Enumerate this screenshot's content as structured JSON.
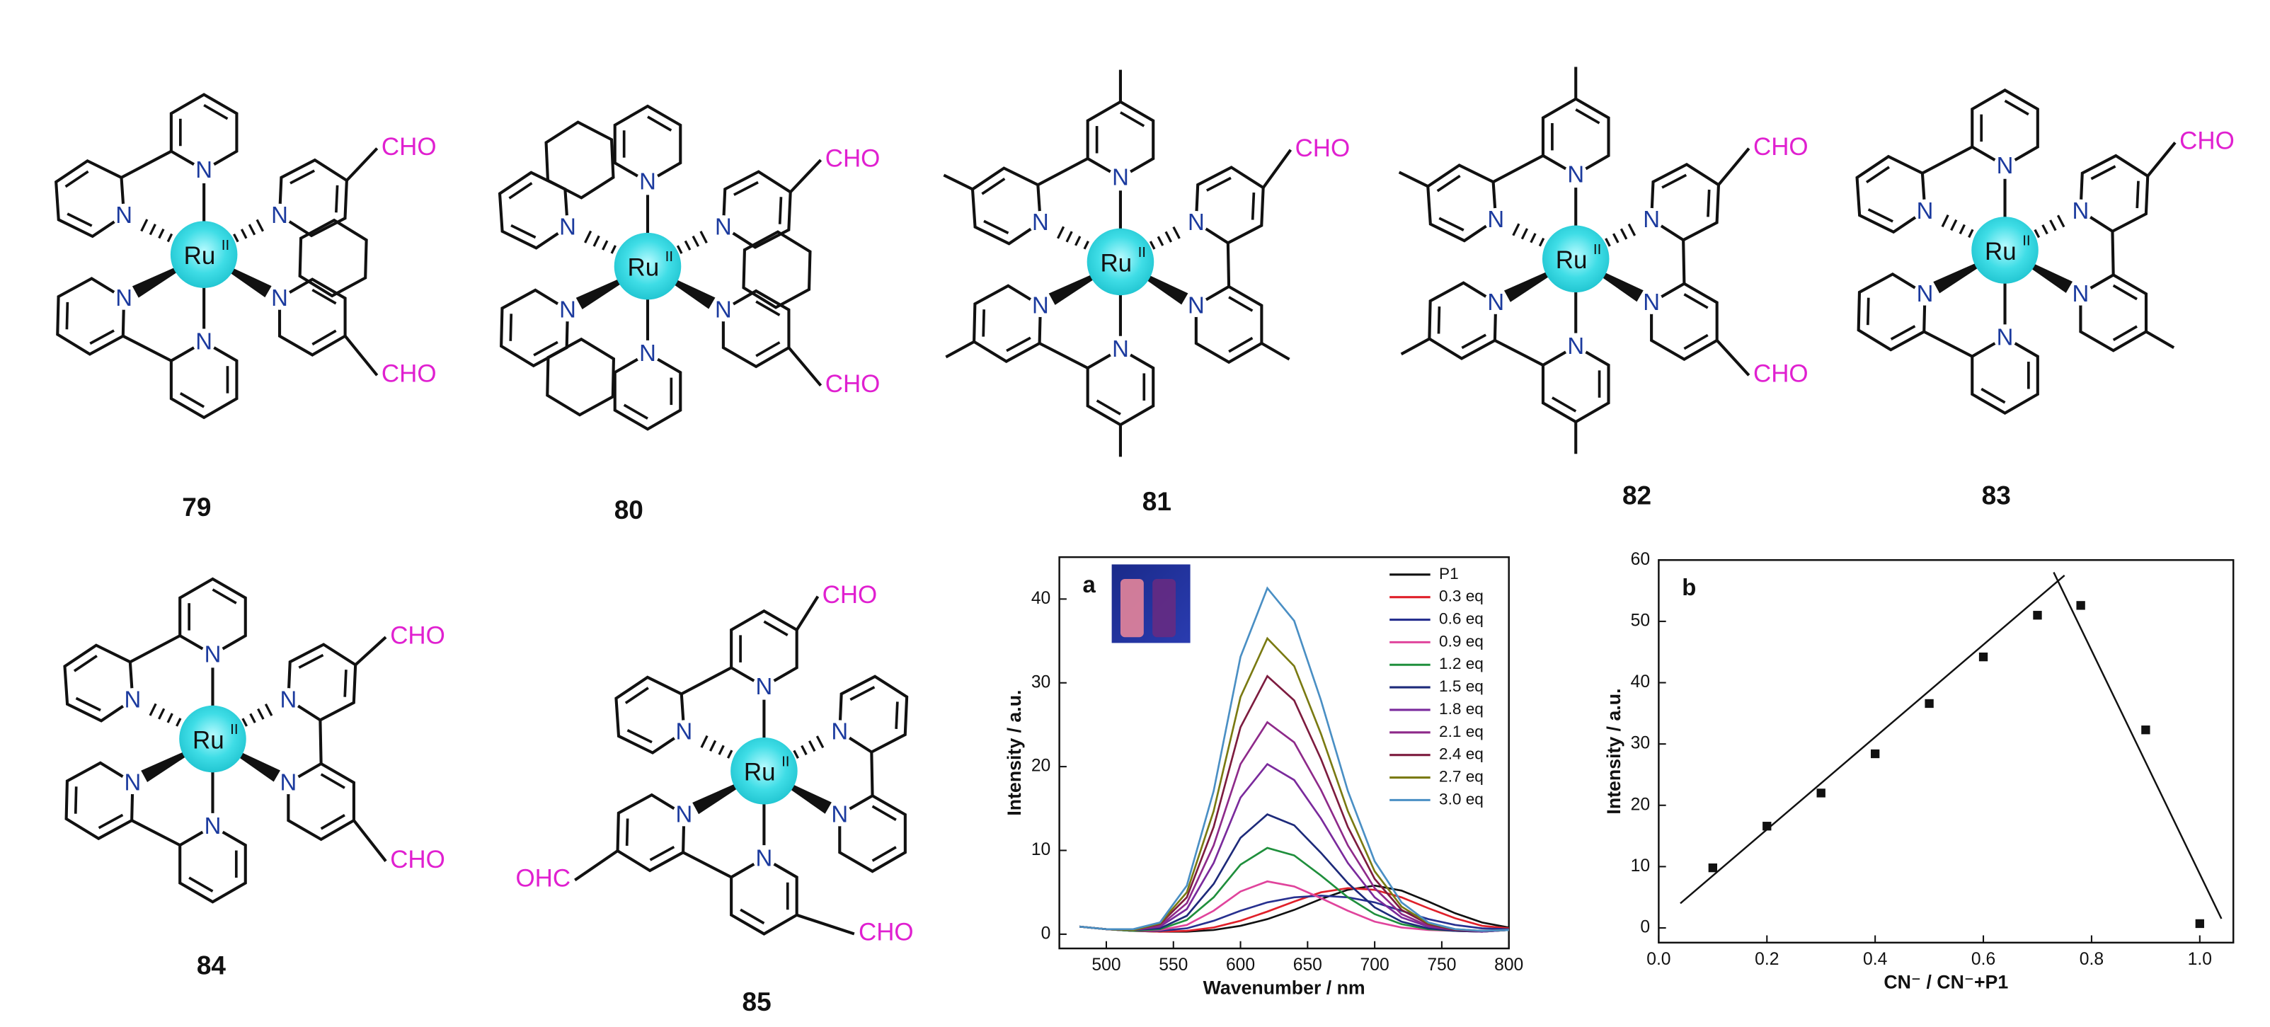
{
  "compounds": [
    {
      "label": "79",
      "metal": "Ru",
      "oxidation_state": "II",
      "donor": "N",
      "substituents": [
        "CHO",
        "CHO"
      ]
    },
    {
      "label": "80",
      "metal": "Ru",
      "oxidation_state": "II",
      "donor": "N",
      "substituents": [
        "CHO",
        "CHO"
      ]
    },
    {
      "label": "81",
      "metal": "Ru",
      "oxidation_state": "II",
      "donor": "N",
      "substituents": [
        "CHO"
      ]
    },
    {
      "label": "82",
      "metal": "Ru",
      "oxidation_state": "II",
      "donor": "N",
      "substituents": [
        "CHO",
        "CHO"
      ]
    },
    {
      "label": "83",
      "metal": "Ru",
      "oxidation_state": "II",
      "donor": "N",
      "substituents": [
        "CHO"
      ]
    },
    {
      "label": "84",
      "metal": "Ru",
      "oxidation_state": "II",
      "donor": "N",
      "substituents": [
        "CHO",
        "CHO"
      ]
    },
    {
      "label": "85",
      "metal": "Ru",
      "oxidation_state": "II",
      "donor": "N",
      "substituents": [
        "CHO",
        "OHC",
        "CHO"
      ]
    }
  ],
  "chart_data": [
    {
      "type": "line",
      "panel_label": "a",
      "x_label": "Wavenumber / nm",
      "y_label": "Intensity / a.u.",
      "xlim": [
        465,
        800
      ],
      "ylim": [
        -1.7,
        45
      ],
      "xticks": [
        500,
        550,
        600,
        650,
        700,
        750,
        800
      ],
      "yticks": [
        0,
        10,
        20,
        30,
        40
      ],
      "legend": "upper right",
      "x": [
        480,
        500,
        520,
        540,
        560,
        580,
        600,
        620,
        640,
        660,
        680,
        700,
        720,
        740,
        760,
        780,
        800
      ],
      "series": [
        {
          "name": "P1",
          "color": "#111111",
          "values": [
            0.9,
            0.6,
            0.4,
            0.3,
            0.3,
            0.5,
            1.0,
            1.8,
            2.9,
            4.2,
            5.3,
            5.8,
            5.2,
            3.9,
            2.5,
            1.4,
            0.8
          ]
        },
        {
          "name": "0.3 eq",
          "color": "#e0202a",
          "values": [
            0.9,
            0.6,
            0.4,
            0.3,
            0.4,
            0.8,
            1.6,
            2.7,
            3.9,
            5.0,
            5.5,
            5.3,
            4.4,
            3.1,
            1.9,
            1.0,
            0.7
          ]
        },
        {
          "name": "0.6 eq",
          "color": "#27308f",
          "values": [
            0.9,
            0.6,
            0.4,
            0.4,
            0.7,
            1.6,
            2.8,
            3.8,
            4.4,
            4.6,
            4.4,
            3.8,
            2.8,
            1.8,
            1.1,
            0.7,
            0.6
          ]
        },
        {
          "name": "0.9 eq",
          "color": "#e0449c",
          "values": [
            0.9,
            0.6,
            0.4,
            0.5,
            1.1,
            2.8,
            5.1,
            6.3,
            5.7,
            4.3,
            2.8,
            1.5,
            0.8,
            0.5,
            0.4,
            0.3,
            0.5
          ]
        },
        {
          "name": "1.2 eq",
          "color": "#1f8f3c",
          "values": [
            0.9,
            0.6,
            0.4,
            0.6,
            1.7,
            4.4,
            8.3,
            10.3,
            9.4,
            7.0,
            4.4,
            2.4,
            1.2,
            0.6,
            0.4,
            0.3,
            0.5
          ]
        },
        {
          "name": "1.5 eq",
          "color": "#1d2a7a",
          "values": [
            0.9,
            0.6,
            0.5,
            0.7,
            2.2,
            6.0,
            11.5,
            14.3,
            13.0,
            9.7,
            6.1,
            3.2,
            1.5,
            0.7,
            0.4,
            0.3,
            0.5
          ]
        },
        {
          "name": "1.8 eq",
          "color": "#7a2a9c",
          "values": [
            0.9,
            0.6,
            0.5,
            0.9,
            3.0,
            8.5,
            16.3,
            20.3,
            18.4,
            13.8,
            8.5,
            4.4,
            2.0,
            0.9,
            0.5,
            0.3,
            0.5
          ]
        },
        {
          "name": "2.1 eq",
          "color": "#8e2a8a",
          "values": [
            0.9,
            0.6,
            0.5,
            1.0,
            3.7,
            10.6,
            20.3,
            25.3,
            22.9,
            17.2,
            10.6,
            5.5,
            2.4,
            1.0,
            0.5,
            0.4,
            0.5
          ]
        },
        {
          "name": "2.4 eq",
          "color": "#7d1c3f",
          "values": [
            0.9,
            0.6,
            0.5,
            1.2,
            4.4,
            12.8,
            24.7,
            30.8,
            27.9,
            20.9,
            12.8,
            6.6,
            2.9,
            1.2,
            0.5,
            0.4,
            0.5
          ]
        },
        {
          "name": "2.7 eq",
          "color": "#7a7a12",
          "values": [
            0.9,
            0.6,
            0.5,
            1.3,
            5.0,
            14.7,
            28.3,
            35.3,
            32.0,
            23.9,
            14.7,
            7.5,
            3.3,
            1.3,
            0.6,
            0.4,
            0.5
          ]
        },
        {
          "name": "3.0 eq",
          "color": "#4a8fc4",
          "values": [
            0.9,
            0.6,
            0.6,
            1.4,
            5.8,
            17.1,
            33.1,
            41.3,
            37.4,
            27.9,
            17.1,
            8.7,
            3.8,
            1.4,
            0.6,
            0.4,
            0.5
          ]
        }
      ]
    },
    {
      "type": "scatter",
      "panel_label": "b",
      "x_label": "CN⁻ / CN⁻+P1",
      "y_label": "Intensity / a.u.",
      "xlim": [
        0,
        1.062
      ],
      "ylim": [
        -2.4,
        60
      ],
      "xticks": [
        {
          "value": 0,
          "label": "0.0"
        },
        0.2,
        0.4,
        0.6,
        0.8,
        {
          "value": 1,
          "label": "1.0"
        }
      ],
      "yticks": [
        0,
        10,
        20,
        30,
        40,
        50,
        60
      ],
      "color": "#111111",
      "x": [
        0.1,
        0.2,
        0.3,
        0.4,
        0.5,
        0.6,
        0.7,
        0.78,
        0.9,
        1.0
      ],
      "values": [
        9.8,
        16.6,
        22,
        28.4,
        36.6,
        44.2,
        51,
        52.6,
        32.3,
        0.7
      ],
      "fit_lines": [
        {
          "x": [
            0.04,
            0.75
          ],
          "y": [
            4,
            57.5
          ]
        },
        {
          "x": [
            0.73,
            1.04
          ],
          "y": [
            58,
            1.5
          ]
        }
      ]
    }
  ]
}
